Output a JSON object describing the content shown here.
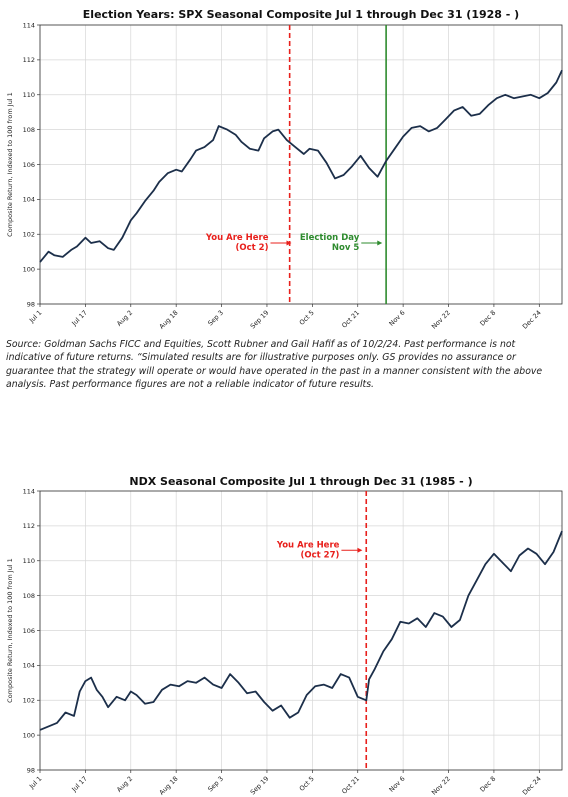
{
  "chart_data": [
    {
      "type": "line",
      "title": "Election Years: SPX Seasonal Composite Jul 1 through Dec 31 (1928 - )",
      "ylabel": "Composite Return, Indexed to 100 from Jul 1",
      "ylim": [
        98,
        114
      ],
      "yticks": [
        98,
        100,
        102,
        104,
        106,
        108,
        110,
        112,
        114
      ],
      "xticks": [
        "Jul 1",
        "Jul 17",
        "Aug 2",
        "Aug 18",
        "Sep 3",
        "Sep 19",
        "Oct 5",
        "Oct 21",
        "Nov 6",
        "Nov 22",
        "Dec 8",
        "Dec 24"
      ],
      "grid": true,
      "series_color": "#1c2f4a",
      "series": [
        {
          "x": [
            0,
            3,
            5,
            8,
            11,
            13,
            16,
            18,
            21,
            24,
            26,
            29,
            32,
            34,
            37,
            40,
            42,
            45,
            48,
            50,
            53,
            55,
            58,
            61,
            63,
            66,
            69,
            71,
            74,
            77,
            79,
            82,
            84,
            87,
            90,
            93,
            95,
            98,
            101,
            104,
            107,
            110,
            113,
            116,
            119,
            122,
            125,
            128,
            131,
            134,
            137,
            140,
            143,
            146,
            149,
            152,
            155,
            158,
            161,
            164,
            167,
            170,
            173,
            176,
            179,
            182,
            184
          ],
          "y": [
            100.4,
            101.0,
            100.8,
            100.7,
            101.1,
            101.3,
            101.8,
            101.5,
            101.6,
            101.2,
            101.1,
            101.8,
            102.8,
            103.2,
            103.9,
            104.5,
            105.0,
            105.5,
            105.7,
            105.6,
            106.3,
            106.8,
            107.0,
            107.4,
            108.2,
            108.0,
            107.7,
            107.3,
            106.9,
            106.8,
            107.5,
            107.9,
            108.0,
            107.4,
            107.0,
            106.6,
            106.9,
            106.8,
            106.1,
            105.2,
            105.4,
            105.9,
            106.5,
            105.8,
            105.3,
            106.2,
            106.9,
            107.6,
            108.1,
            108.2,
            107.9,
            108.1,
            108.6,
            109.1,
            109.3,
            108.8,
            108.9,
            109.4,
            109.8,
            110.0,
            109.8,
            109.9,
            110.0,
            109.8,
            110.1,
            110.7,
            111.4
          ]
        }
      ],
      "vlines": [
        {
          "x": 88,
          "color": "#e8201c",
          "style": "dashed"
        },
        {
          "x": 122,
          "color": "#2e8b2e",
          "style": "solid"
        }
      ],
      "annotations": [
        {
          "lines": [
            "You Are Here",
            "(Oct 2)"
          ],
          "color": "#e8201c",
          "x": 89,
          "y": 101.5
        },
        {
          "lines": [
            "Election Day",
            "Nov 5"
          ],
          "color": "#2e8b2e",
          "x": 121,
          "y": 101.5
        }
      ]
    },
    {
      "type": "line",
      "title": "NDX Seasonal Composite Jul 1 through Dec 31 (1985 - )",
      "ylabel": "Composite Return, Indexed to 100 from Jul 1",
      "ylim": [
        98,
        114
      ],
      "yticks": [
        98,
        100,
        102,
        104,
        106,
        108,
        110,
        112,
        114
      ],
      "xticks": [
        "Jul 1",
        "Jul 17",
        "Aug 2",
        "Aug 18",
        "Sep 3",
        "Sep 19",
        "Oct 5",
        "Oct 21",
        "Nov 6",
        "Nov 22",
        "Dec 8",
        "Dec 24"
      ],
      "grid": true,
      "series_color": "#1c2f4a",
      "series": [
        {
          "x": [
            0,
            3,
            6,
            9,
            12,
            14,
            16,
            18,
            20,
            22,
            24,
            27,
            30,
            32,
            34,
            37,
            40,
            43,
            46,
            49,
            52,
            55,
            58,
            61,
            64,
            67,
            70,
            73,
            76,
            79,
            82,
            85,
            88,
            91,
            94,
            97,
            100,
            103,
            106,
            109,
            112,
            115,
            116,
            118,
            121,
            124,
            127,
            130,
            133,
            136,
            139,
            142,
            145,
            148,
            151,
            154,
            157,
            160,
            163,
            166,
            169,
            172,
            175,
            178,
            181,
            184
          ],
          "y": [
            100.3,
            100.5,
            100.7,
            101.3,
            101.1,
            102.5,
            103.1,
            103.3,
            102.6,
            102.2,
            101.6,
            102.2,
            102.0,
            102.5,
            102.3,
            101.8,
            101.9,
            102.6,
            102.9,
            102.8,
            103.1,
            103.0,
            103.3,
            102.9,
            102.7,
            103.5,
            103.0,
            102.4,
            102.5,
            101.9,
            101.4,
            101.7,
            101.0,
            101.3,
            102.3,
            102.8,
            102.9,
            102.7,
            103.5,
            103.3,
            102.2,
            102.0,
            103.2,
            103.8,
            104.8,
            105.5,
            106.5,
            106.4,
            106.7,
            106.2,
            107.0,
            106.8,
            106.2,
            106.6,
            108.0,
            108.9,
            109.8,
            110.4,
            109.9,
            109.4,
            110.3,
            110.7,
            110.4,
            109.8,
            110.5,
            111.7
          ]
        }
      ],
      "vlines": [
        {
          "x": 115,
          "color": "#e8201c",
          "style": "dashed"
        }
      ],
      "annotations": [
        {
          "lines": [
            "You Are Here",
            "(Oct 27)"
          ],
          "color": "#e8201c",
          "x": 114,
          "y": 110.6
        }
      ]
    }
  ],
  "source_note": "Source: Goldman Sachs FICC and Equities, Scott Rubner and Gail Hafif as of 10/2/24. Past performance is not indicative of future returns. “Simulated results are for illustrative purposes only. GS provides no assurance or guarantee that the strategy will operate or would have operated in the past in a manner consistent with the above analysis. Past performance figures are not a reliable indicator of future results."
}
